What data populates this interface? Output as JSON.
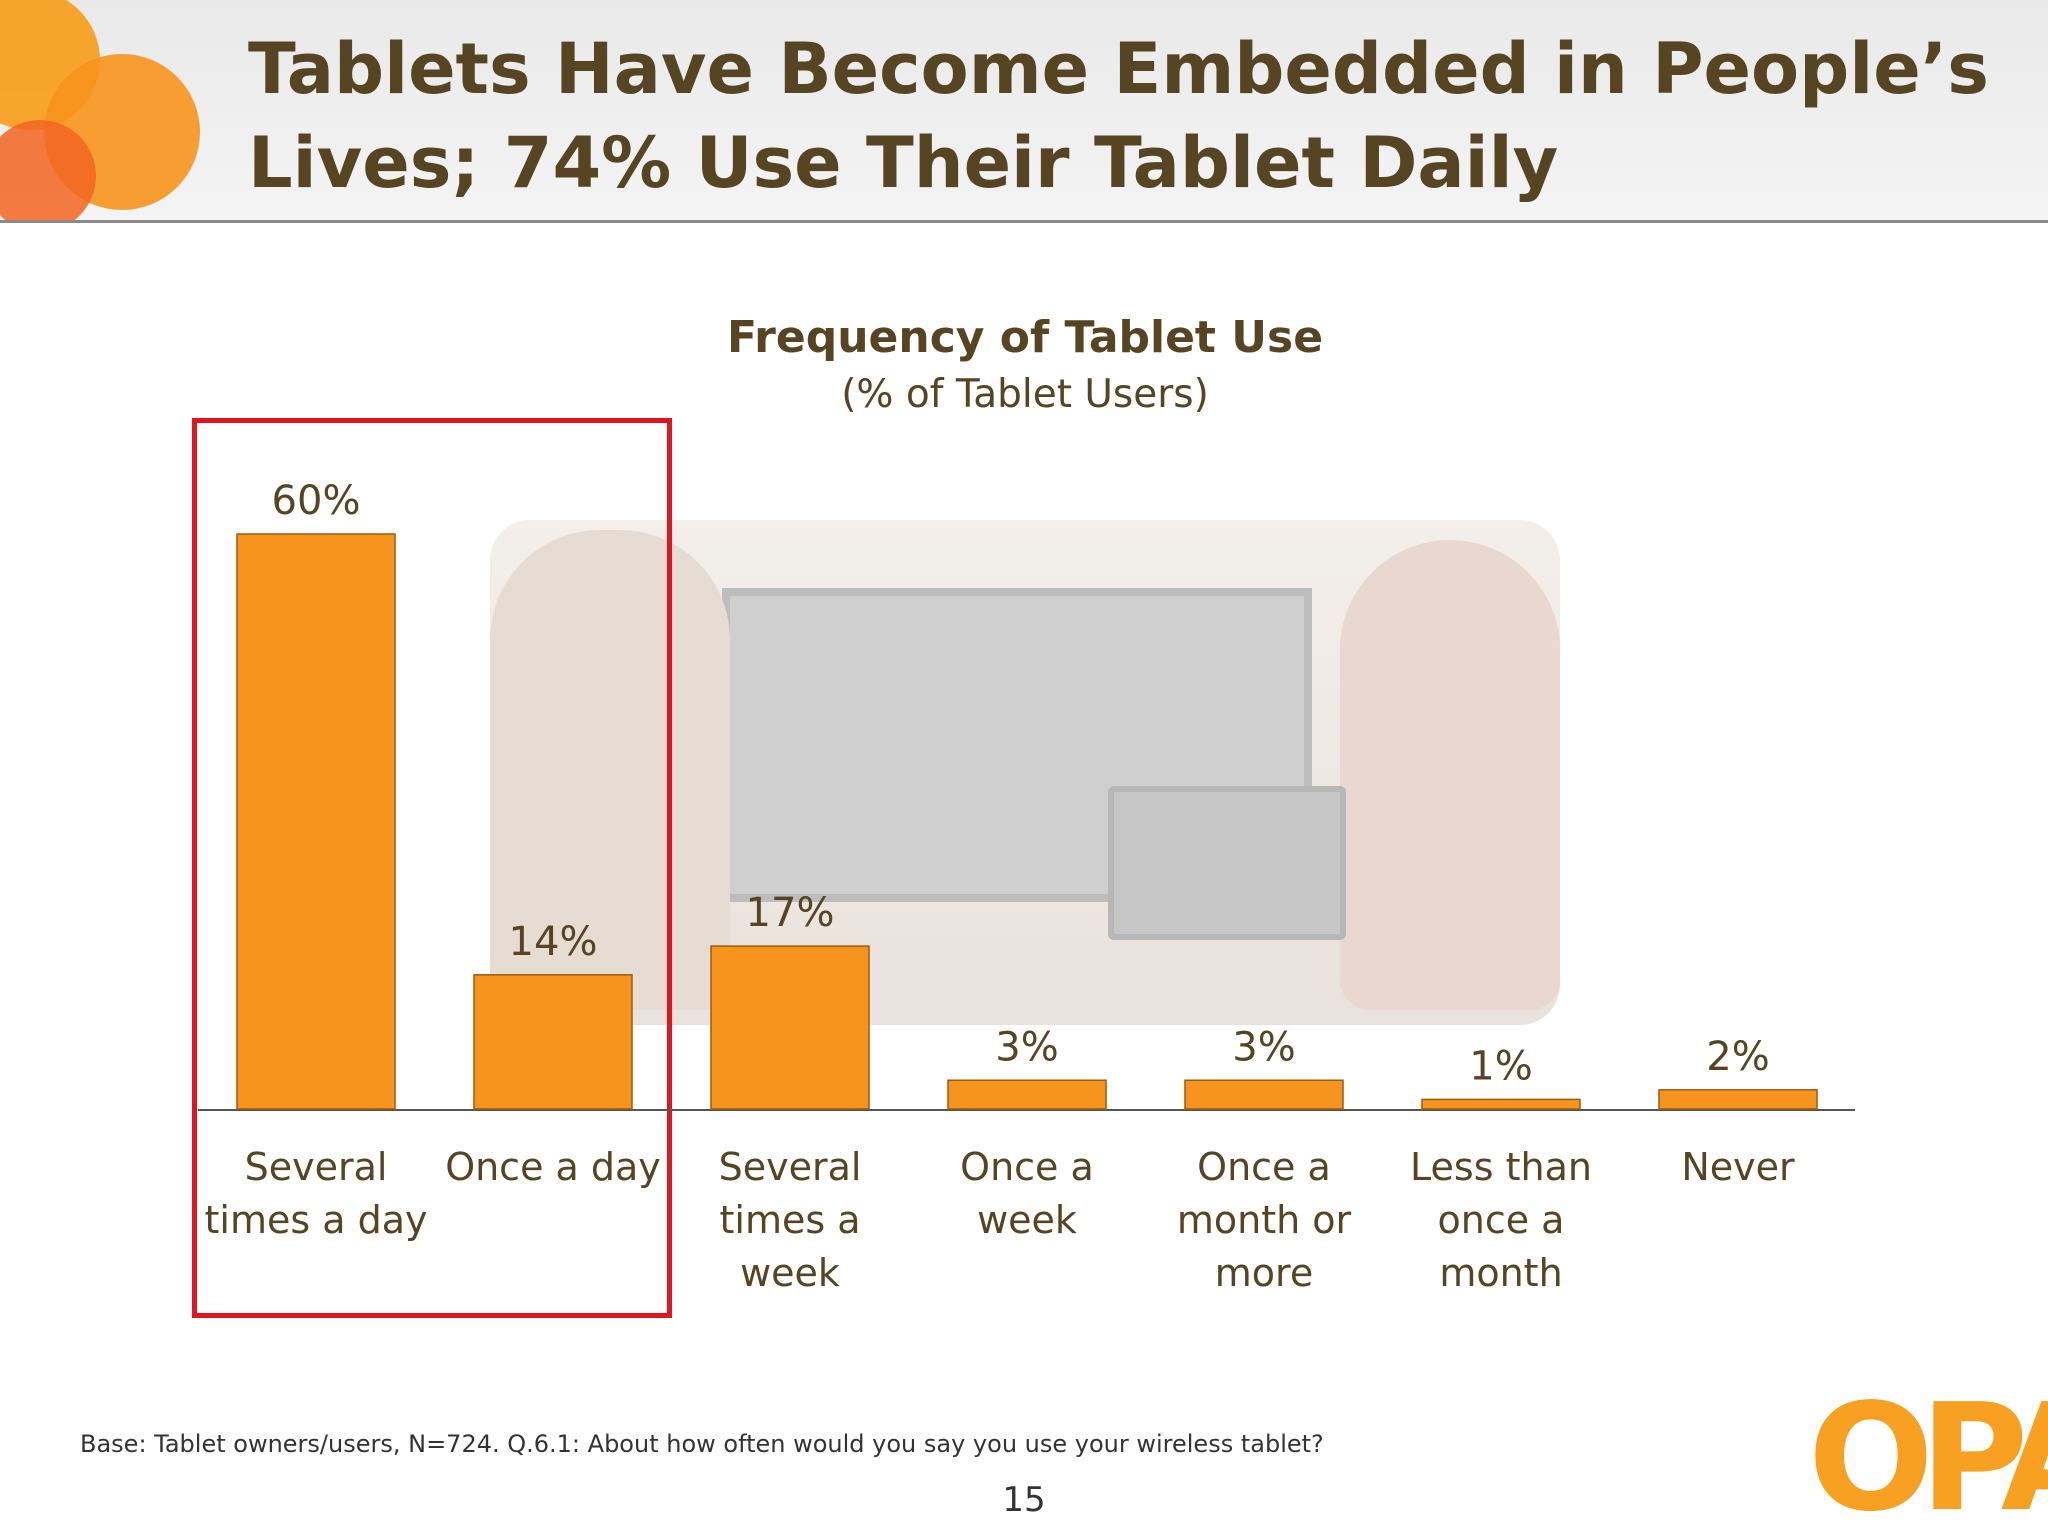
{
  "slide": {
    "title_line1": "Tablets Have Become Embedded in People’s",
    "title_line2": "Lives; 74% Use Their Tablet Daily",
    "footnote": "Base:  Tablet owners/users, N=724.  Q.6.1:  About how often would you say you use your wireless tablet?",
    "page_number": "15",
    "logo_text": "OPA"
  },
  "colors": {
    "bar": "#f7941d",
    "text": "#574422",
    "highlight": "#e0161c",
    "axis": "#555555"
  },
  "chart_data": {
    "type": "bar",
    "title": "Frequency of Tablet Use",
    "subtitle": "(% of Tablet Users)",
    "xlabel": "",
    "ylabel": "",
    "categories": [
      [
        "Several",
        "times a day"
      ],
      [
        "Once a day"
      ],
      [
        "Several",
        "times a",
        "week"
      ],
      [
        "Once a",
        "week"
      ],
      [
        "Once a",
        "month or",
        "more"
      ],
      [
        "Less than",
        "once a",
        "month"
      ],
      [
        "Never"
      ]
    ],
    "values": [
      60,
      14,
      17,
      3,
      3,
      1,
      2
    ],
    "value_labels": [
      "60%",
      "14%",
      "17%",
      "3%",
      "3%",
      "1%",
      "2%"
    ],
    "unit": "%",
    "ylim": [
      0,
      60
    ],
    "grid": false,
    "legend": "none",
    "highlighted_categories": [
      0,
      1
    ]
  }
}
